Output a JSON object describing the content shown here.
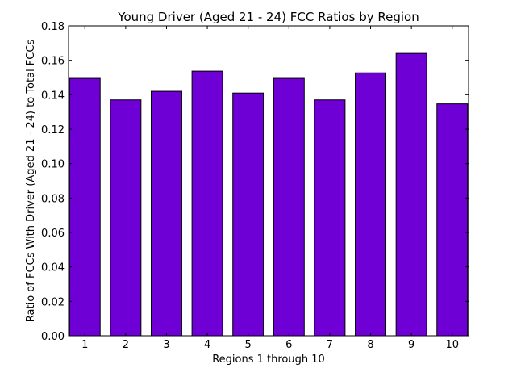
{
  "chart_data": {
    "type": "bar",
    "title": "Young Driver (Aged 21 - 24) FCC Ratios by Region",
    "xlabel": "Regions 1 through 10",
    "ylabel": "Ratio of FCCs With Driver (Aged 21 - 24) to Total FCCs",
    "categories": [
      "1",
      "2",
      "3",
      "4",
      "5",
      "6",
      "7",
      "8",
      "9",
      "10"
    ],
    "values": [
      0.1495,
      0.137,
      0.142,
      0.1537,
      0.141,
      0.1495,
      0.137,
      0.1527,
      0.164,
      0.1347
    ],
    "ylim": [
      0,
      0.18
    ],
    "yticks": [
      "0.00",
      "0.02",
      "0.04",
      "0.06",
      "0.08",
      "0.10",
      "0.12",
      "0.14",
      "0.16",
      "0.18"
    ],
    "bar_color": "#6e00d6",
    "grid": false
  }
}
